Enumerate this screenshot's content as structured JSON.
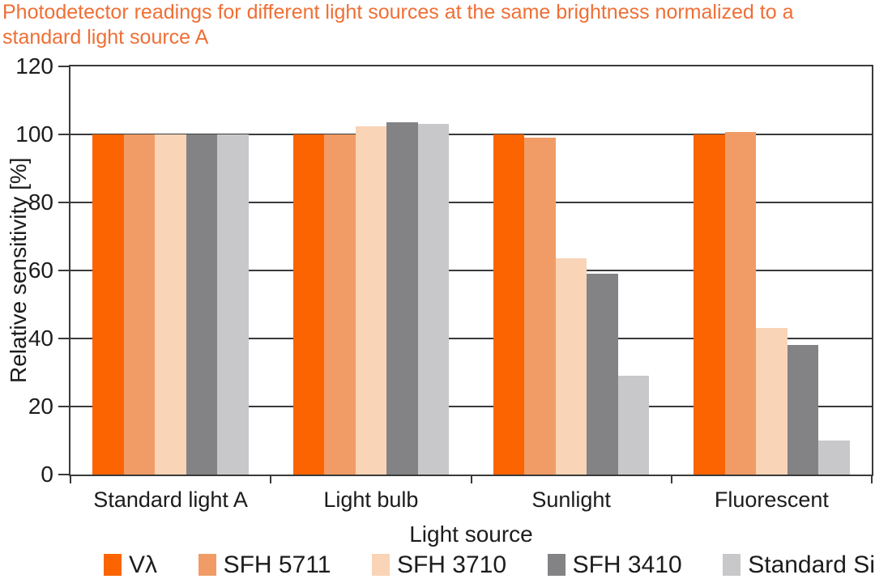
{
  "title": {
    "text": "Photodetector readings for different light sources at the same brightness normalized to a standard light source A",
    "color": "#EF6F35"
  },
  "chart_data": {
    "type": "bar",
    "title": "Photodetector readings for different light sources at the same brightness normalized to a standard light source A",
    "categories": [
      "Standard light A",
      "Light bulb",
      "Sunlight",
      "Fluorescent"
    ],
    "series": [
      {
        "key": "v-lambda",
        "name": "Vλ",
        "color": "#FB6400",
        "values": [
          100,
          100,
          100,
          100
        ]
      },
      {
        "key": "sfh-5711",
        "name": "SFH 5711",
        "color": "#F19C66",
        "values": [
          100,
          100,
          99,
          100.7
        ]
      },
      {
        "key": "sfh-3710",
        "name": "SFH 3710",
        "color": "#F9D4B6",
        "values": [
          100,
          102.5,
          63.5,
          43
        ]
      },
      {
        "key": "sfh-3410",
        "name": "SFH 3410",
        "color": "#838385",
        "values": [
          100,
          103.5,
          59,
          38
        ]
      },
      {
        "key": "standard-si",
        "name": "Standard Si",
        "color": "#C8C8CA",
        "values": [
          100,
          103,
          29,
          10
        ]
      }
    ],
    "xlabel": "Light source",
    "ylabel": "Relative sensitivity [%]",
    "ylim": [
      0,
      120
    ],
    "ytick_step": 20,
    "yticks": [
      0,
      20,
      40,
      60,
      80,
      100,
      120
    ],
    "grid": "horizontal",
    "legend_position": "bottom",
    "axis_color": "#3a3a3a",
    "text_color": "#1c1c1c"
  }
}
